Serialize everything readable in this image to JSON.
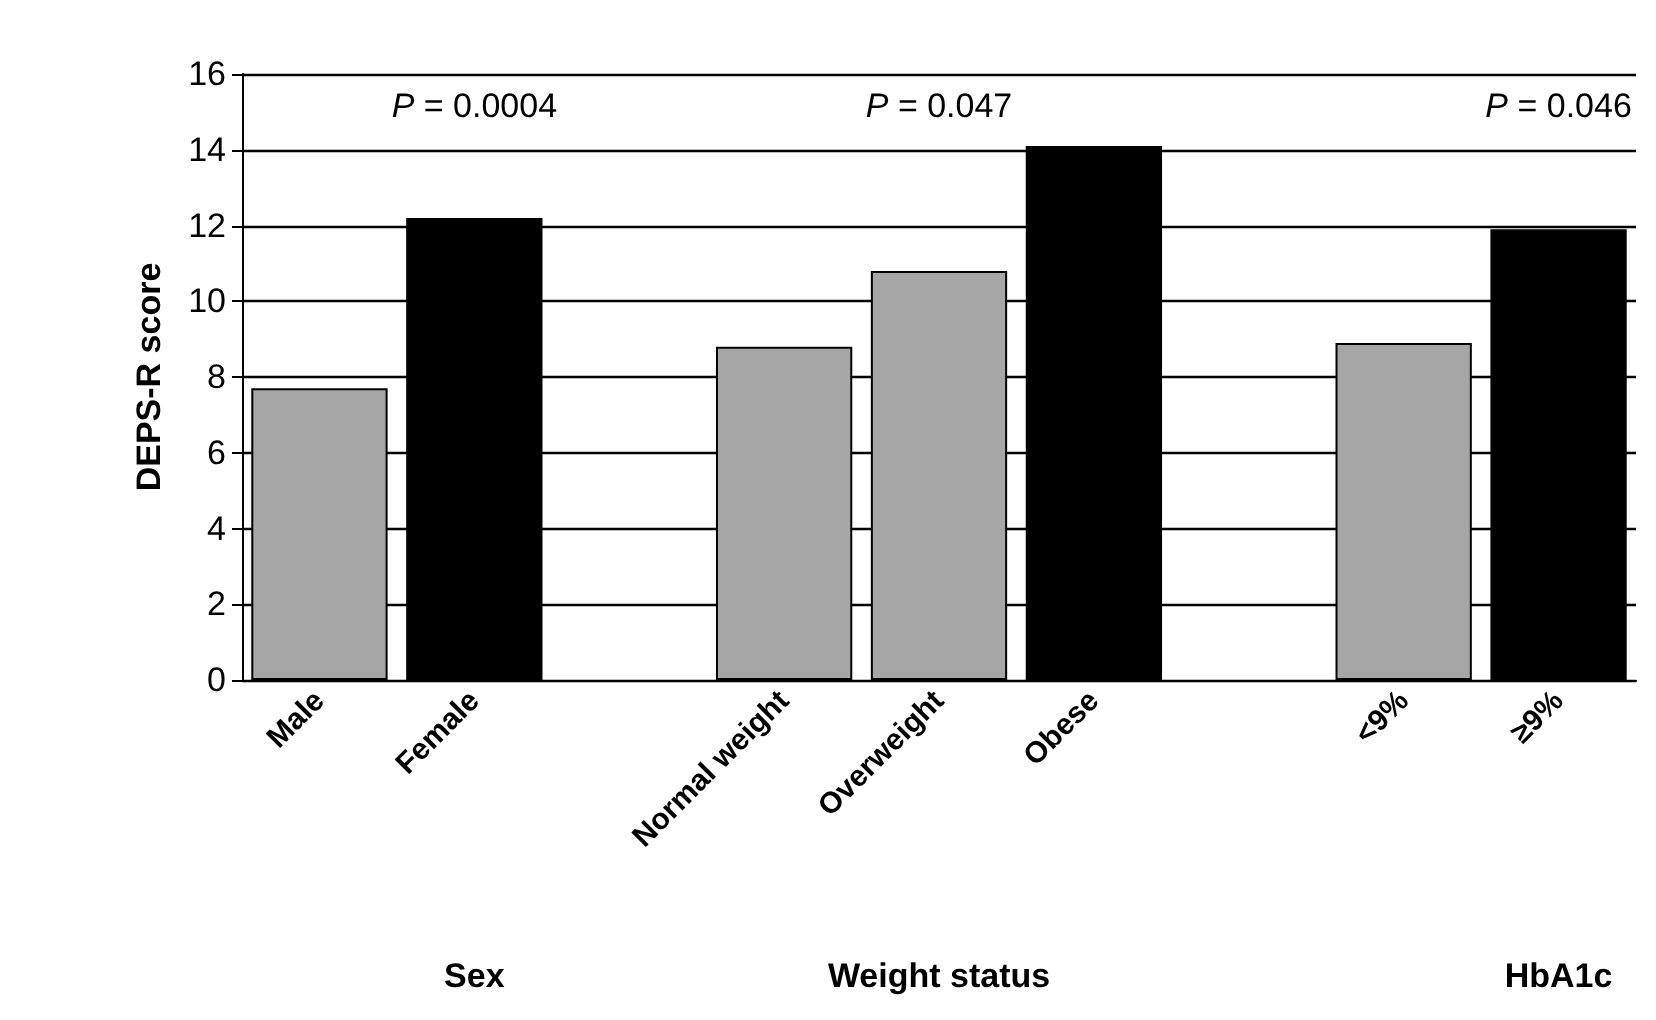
{
  "chart_data": {
    "type": "bar",
    "ylabel": "DEPS-R score",
    "categories": [
      "Male",
      "Female",
      null,
      "Normal weight",
      "Overweight",
      "Obese",
      null,
      "<9%",
      "≥9%"
    ],
    "values": [
      7.7,
      12.2,
      null,
      8.8,
      10.8,
      14.1,
      null,
      8.9,
      11.9
    ],
    "colors": [
      "#a6a6a6",
      "#000000",
      null,
      "#a6a6a6",
      "#a6a6a6",
      "#000000",
      null,
      "#a6a6a6",
      "#000000"
    ],
    "ylim": [
      0,
      16
    ],
    "yticks": [
      0,
      2,
      4,
      6,
      8,
      10,
      12,
      14,
      16
    ],
    "grid": "y",
    "annotations": [
      "P = 0.0004",
      "P = 0.047",
      "P = 0.046",
      "Sex",
      "Weight status",
      "HbA1c"
    ]
  }
}
